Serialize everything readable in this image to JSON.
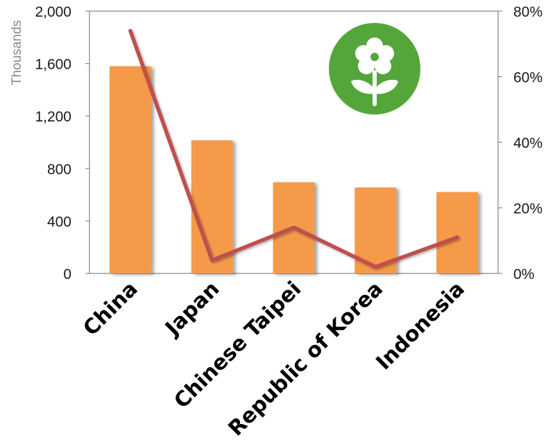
{
  "chart_data": {
    "type": "bar",
    "categories": [
      "China",
      "Japan",
      "Chinese Taipei",
      "Republic of Korea",
      "Indonesia"
    ],
    "series": [
      {
        "type": "bar",
        "axis": "left",
        "values": [
          1580,
          1015,
          695,
          655,
          620
        ]
      },
      {
        "type": "line",
        "axis": "right",
        "values": [
          0.74,
          0.04,
          0.14,
          0.02,
          0.11
        ]
      }
    ],
    "ylabel": "Thousands",
    "y_left": {
      "min": 0,
      "max": 2000,
      "ticks": [
        0,
        400,
        800,
        1200,
        1600,
        2000
      ],
      "labels": [
        "0",
        "400",
        "800",
        "1,200",
        "1,600",
        "2,000"
      ]
    },
    "y_right": {
      "min": 0,
      "max": 0.8,
      "ticks": [
        0,
        0.2,
        0.4,
        0.6,
        0.8
      ],
      "labels": [
        "0%",
        "20%",
        "40%",
        "60%",
        "80%"
      ]
    },
    "grid": false,
    "legend": "none",
    "colors": {
      "bar": "#F59A4A",
      "line": "#C0504D",
      "icon_bg": "#55A63A",
      "axis": "#8C8C8C"
    },
    "icon": "flower-icon"
  }
}
